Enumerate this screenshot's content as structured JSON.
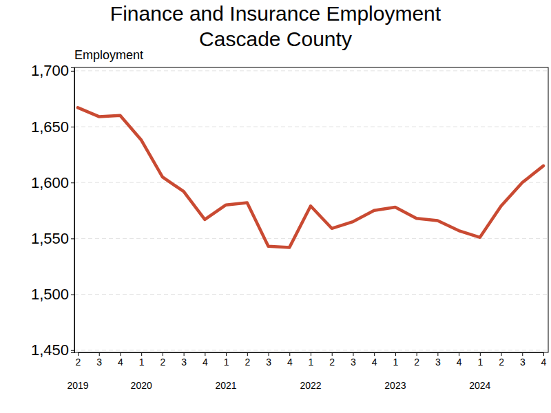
{
  "chart_data": {
    "type": "line",
    "title": "Finance and Insurance Employment",
    "subtitle": "Cascade County",
    "y_label": "Employment",
    "categories": [
      "2",
      "3",
      "4",
      "1",
      "2",
      "3",
      "4",
      "1",
      "2",
      "3",
      "4",
      "1",
      "2",
      "3",
      "4",
      "1",
      "2",
      "3",
      "4",
      "1",
      "2",
      "3",
      "4"
    ],
    "year_labels": [
      "2019",
      null,
      null,
      "2020",
      null,
      null,
      null,
      "2021",
      null,
      null,
      null,
      "2022",
      null,
      null,
      null,
      "2023",
      null,
      null,
      null,
      "2024",
      null,
      null,
      null
    ],
    "values": [
      1667,
      1659,
      1660,
      1638,
      1605,
      1592,
      1567,
      1580,
      1582,
      1543,
      1542,
      1579,
      1559,
      1565,
      1575,
      1578,
      1568,
      1566,
      1557,
      1551,
      1579,
      1600,
      1615
    ],
    "color": "#c94a32",
    "ylim": [
      1448,
      1703
    ],
    "yticks": [
      {
        "value": 1450,
        "label": "1,450"
      },
      {
        "value": 1500,
        "label": "1,500"
      },
      {
        "value": 1550,
        "label": "1,550"
      },
      {
        "value": 1600,
        "label": "1,600"
      },
      {
        "value": 1650,
        "label": "1,650"
      },
      {
        "value": 1700,
        "label": "1,700"
      }
    ],
    "grid": true
  }
}
